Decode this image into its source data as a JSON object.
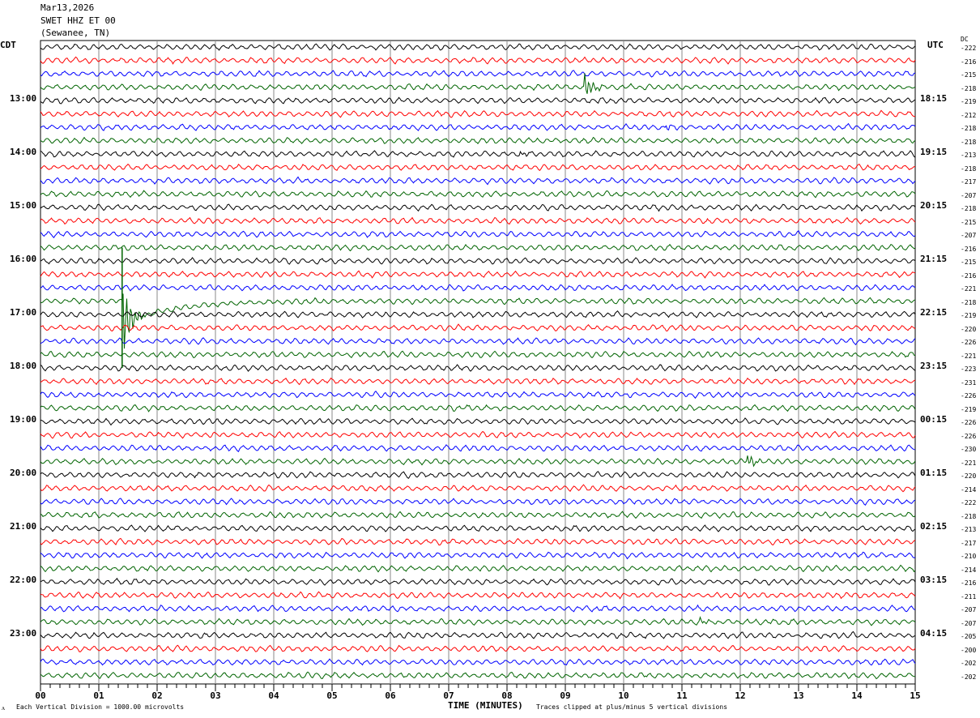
{
  "header": {
    "date": "Mar13,2026",
    "station": "SWET HHZ ET 00",
    "location": "(Sewanee, TN)"
  },
  "chart_data": {
    "type": "line",
    "title": "SWET HHZ ET 00 helicorder",
    "xlabel": "TIME (MINUTES)",
    "xlim": [
      0,
      15
    ],
    "x_ticks": [
      "00",
      "01",
      "02",
      "03",
      "04",
      "05",
      "06",
      "07",
      "08",
      "09",
      "10",
      "11",
      "12",
      "13",
      "14",
      "15"
    ],
    "left_timezone": "CDT",
    "right_timezone": "UTC",
    "left_labels": [
      "13:00",
      "14:00",
      "15:00",
      "16:00",
      "17:00",
      "18:00",
      "19:00",
      "20:00",
      "21:00",
      "22:00",
      "23:00"
    ],
    "right_labels": [
      "18:15",
      "19:15",
      "20:15",
      "21:15",
      "22:15",
      "23:15",
      "00:15",
      "01:15",
      "02:15",
      "03:15",
      "04:15"
    ],
    "dc_header": "DC",
    "dc_offsets": [
      "-222",
      "-216",
      "-215",
      "-218",
      "-219",
      "-212",
      "-218",
      "-218",
      "-213",
      "-218",
      "-217",
      "-207",
      "-218",
      "-215",
      "-207",
      "-216",
      "-215",
      "-216",
      "-221",
      "-218",
      "-219",
      "-220",
      "-226",
      "-221",
      "-223",
      "-231",
      "-226",
      "-219",
      "-226",
      "-226",
      "-230",
      "-221",
      "-220",
      "-214",
      "-222",
      "-218",
      "-213",
      "-217",
      "-210",
      "-214",
      "-216",
      "-211",
      "-207",
      "-207",
      "-205",
      "-200",
      "-202",
      "-202"
    ],
    "trace_colors": [
      "#000000",
      "#ff0000",
      "#0000ff",
      "#006400"
    ],
    "trace_count": 48,
    "trace_minutes": 15,
    "events": [
      {
        "trace": 3,
        "minute": 9.3,
        "amp": 3
      },
      {
        "trace": 19,
        "minute": 1.4,
        "amp": 8
      },
      {
        "trace": 6,
        "minute": 10.7,
        "amp": 0.6
      },
      {
        "trace": 31,
        "minute": 12.1,
        "amp": 1.5
      },
      {
        "trace": 8,
        "minute": 8.2,
        "amp": 0.5
      },
      {
        "trace": 43,
        "minute": 11.3,
        "amp": 0.6
      }
    ]
  },
  "footer": {
    "scale": "Each Vertical Division = 1000.00 microvolts",
    "clip": "Traces clipped at plus/minus 5 vertical divisions",
    "corner": "ᴧ"
  }
}
